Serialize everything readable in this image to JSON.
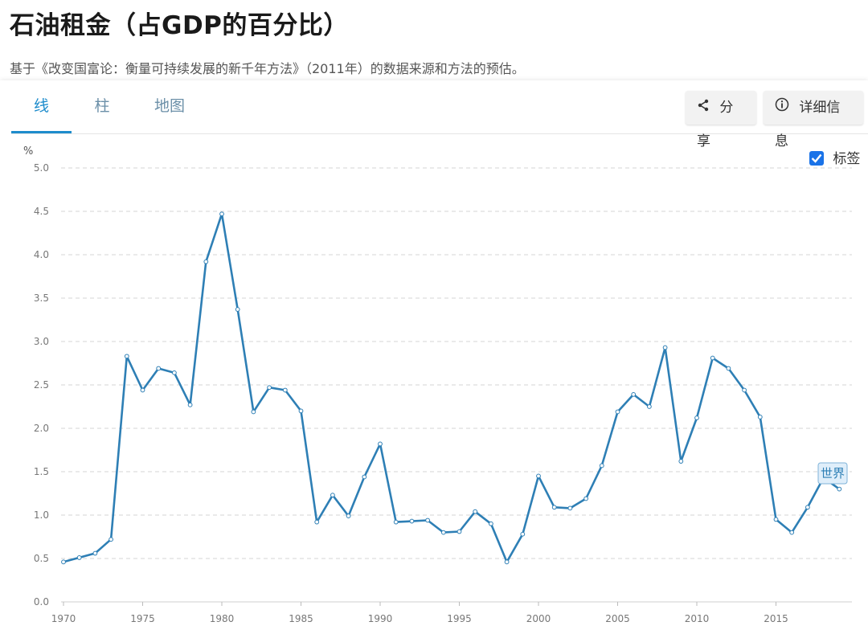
{
  "header": {
    "title": "石油租金（占GDP的百分比）",
    "subtitle": "基于《改变国富论：衡量可持续发展的新千年方法》（2011年）的数据来源和方法的预估。"
  },
  "tabs": [
    {
      "label": "线",
      "active": true
    },
    {
      "label": "柱",
      "active": false
    },
    {
      "label": "地图",
      "active": false
    }
  ],
  "toolbar": {
    "share_label": "分享",
    "details_label": "详细信息"
  },
  "labels_toggle": {
    "label": "标签",
    "checked": true
  },
  "colors": {
    "accent": "#1e8ccc",
    "line": "#2e7fb5",
    "checkbox": "#1a73e8"
  },
  "chart_data": {
    "type": "line",
    "ylabel": "%",
    "ylim": [
      0,
      5
    ],
    "xlim": [
      1970,
      2019
    ],
    "yticks": [
      "0.0",
      "0.5",
      "1.0",
      "1.5",
      "2.0",
      "2.5",
      "3.0",
      "3.5",
      "4.0",
      "4.5",
      "5.0"
    ],
    "xticks": [
      "1970",
      "1975",
      "1980",
      "1985",
      "1990",
      "1995",
      "2000",
      "2005",
      "2010",
      "2015"
    ],
    "grid": true,
    "series": [
      {
        "name": "世界",
        "x": [
          1970,
          1971,
          1972,
          1973,
          1974,
          1975,
          1976,
          1977,
          1978,
          1979,
          1980,
          1981,
          1982,
          1983,
          1984,
          1985,
          1986,
          1987,
          1988,
          1989,
          1990,
          1991,
          1992,
          1993,
          1994,
          1995,
          1996,
          1997,
          1998,
          1999,
          2000,
          2001,
          2002,
          2003,
          2004,
          2005,
          2006,
          2007,
          2008,
          2009,
          2010,
          2011,
          2012,
          2013,
          2014,
          2015,
          2016,
          2017,
          2018,
          2019
        ],
        "values": [
          0.46,
          0.51,
          0.56,
          0.72,
          2.83,
          2.44,
          2.69,
          2.64,
          2.27,
          3.92,
          4.47,
          3.37,
          2.19,
          2.47,
          2.44,
          2.2,
          0.92,
          1.23,
          0.99,
          1.44,
          1.82,
          0.92,
          0.93,
          0.94,
          0.8,
          0.81,
          1.04,
          0.9,
          0.46,
          0.78,
          1.45,
          1.09,
          1.08,
          1.19,
          1.57,
          2.19,
          2.39,
          2.25,
          2.93,
          1.62,
          2.12,
          2.81,
          2.69,
          2.44,
          2.13,
          0.95,
          0.8,
          1.09,
          1.43,
          1.3
        ]
      }
    ]
  }
}
